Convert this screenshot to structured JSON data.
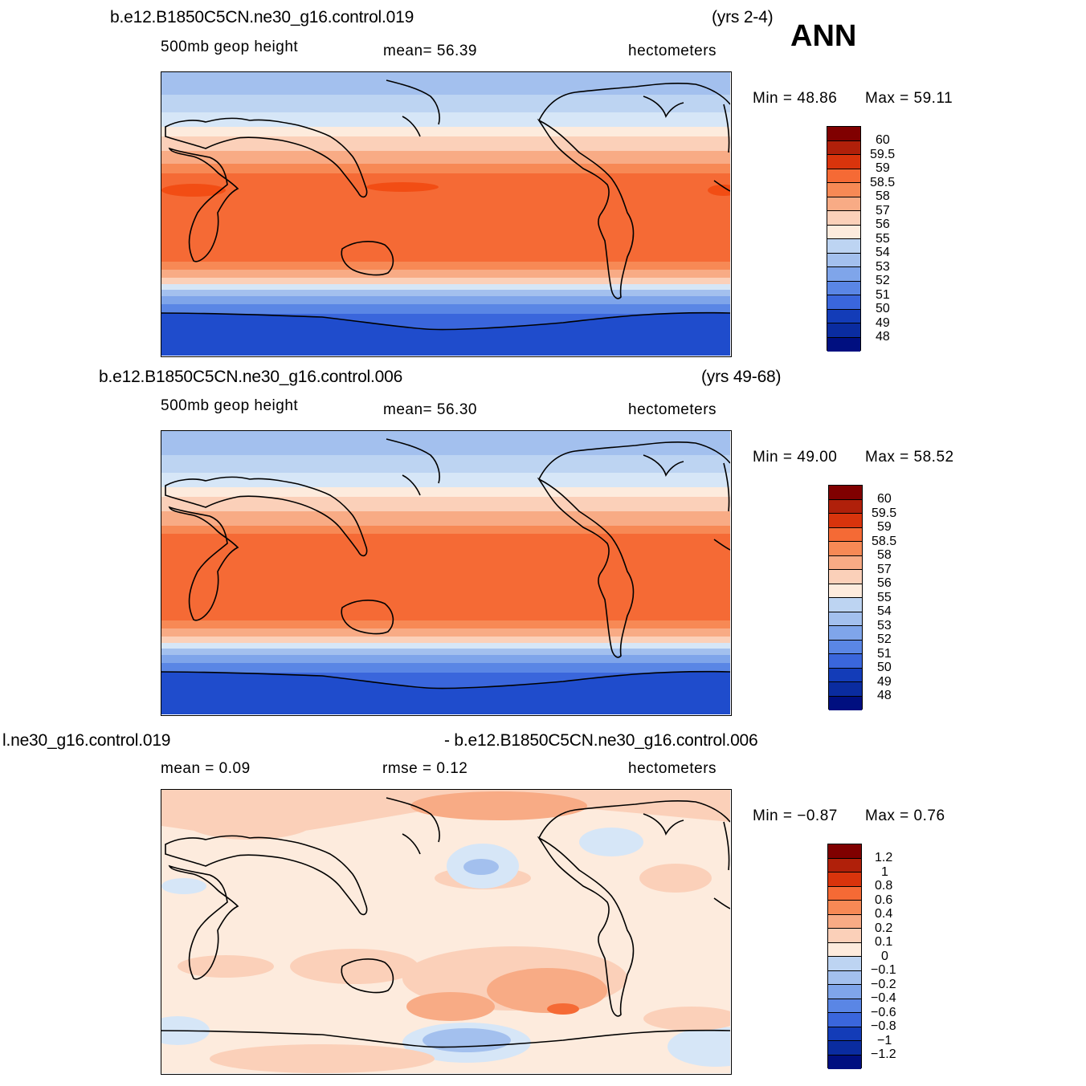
{
  "ann_label": "ANN",
  "panels": [
    {
      "case_name": "b.e12.B1850C5CN.ne30_g16.control.019",
      "years": "(yrs 2-4)",
      "variable": "500mb  geop  height",
      "stat1": "mean=   56.39",
      "units": "hectometers",
      "minmax_min": "Min =   48.86",
      "minmax_max": "Max =   59.11",
      "palette": [
        "#800000",
        "#b0200a",
        "#d9340c",
        "#f24d14",
        "#f56a35",
        "#f78955",
        "#f8ab85",
        "#fbd0b9",
        "#fdebdd",
        "#d6e6f7",
        "#bdd4f2",
        "#a3c0ee",
        "#7fa5ea",
        "#5a86e5",
        "#3a66dc",
        "#1f4ccc",
        "#133cb8",
        "#0a2ca0",
        "#000f80"
      ],
      "legend_labels": [
        "60",
        "59.5",
        "59",
        "58.5",
        "58",
        "57",
        "56",
        "55",
        "54",
        "53",
        "52",
        "51",
        "50",
        "49",
        "48"
      ]
    },
    {
      "case_name": "b.e12.B1850C5CN.ne30_g16.control.006",
      "years": "(yrs 49-68)",
      "variable": "500mb  geop  height",
      "stat1": "mean=   56.30",
      "units": "hectometers",
      "minmax_min": "Min =   49.00",
      "minmax_max": "Max =   58.52",
      "palette": [
        "#800000",
        "#b0200a",
        "#d9340c",
        "#f24d14",
        "#f56a35",
        "#f78955",
        "#f8ab85",
        "#fbd0b9",
        "#fdebdd",
        "#d6e6f7",
        "#bdd4f2",
        "#a3c0ee",
        "#7fa5ea",
        "#5a86e5",
        "#3a66dc",
        "#1f4ccc",
        "#133cb8",
        "#0a2ca0",
        "#000f80"
      ],
      "legend_labels": [
        "60",
        "59.5",
        "59",
        "58.5",
        "58",
        "57",
        "56",
        "55",
        "54",
        "53",
        "52",
        "51",
        "50",
        "49",
        "48"
      ]
    },
    {
      "case_name_left": "l.ne30_g16.control.019",
      "case_name_right": "- b.e12.B1850C5CN.ne30_g16.control.006",
      "stat1": "mean  =     0.09",
      "stat2": "rmse  =     0.12",
      "units": "hectometers",
      "minmax_min": "Min =   −0.87",
      "minmax_max": "Max =     0.76",
      "palette": [
        "#800000",
        "#b0200a",
        "#d9340c",
        "#f24d14",
        "#f56a35",
        "#f78955",
        "#f8ab85",
        "#fbd0b9",
        "#fdebdd",
        "#d6e6f7",
        "#bdd4f2",
        "#a3c0ee",
        "#7fa5ea",
        "#5a86e5",
        "#3a66dc",
        "#1f4ccc",
        "#133cb8",
        "#0a2ca0",
        "#000f80"
      ],
      "legend_labels": [
        "1.2",
        "1",
        "0.8",
        "0.6",
        "0.4",
        "0.2",
        "0.1",
        "0",
        "−0.1",
        "−0.2",
        "−0.4",
        "−0.6",
        "−0.8",
        "−1",
        "−1.2"
      ]
    }
  ]
}
